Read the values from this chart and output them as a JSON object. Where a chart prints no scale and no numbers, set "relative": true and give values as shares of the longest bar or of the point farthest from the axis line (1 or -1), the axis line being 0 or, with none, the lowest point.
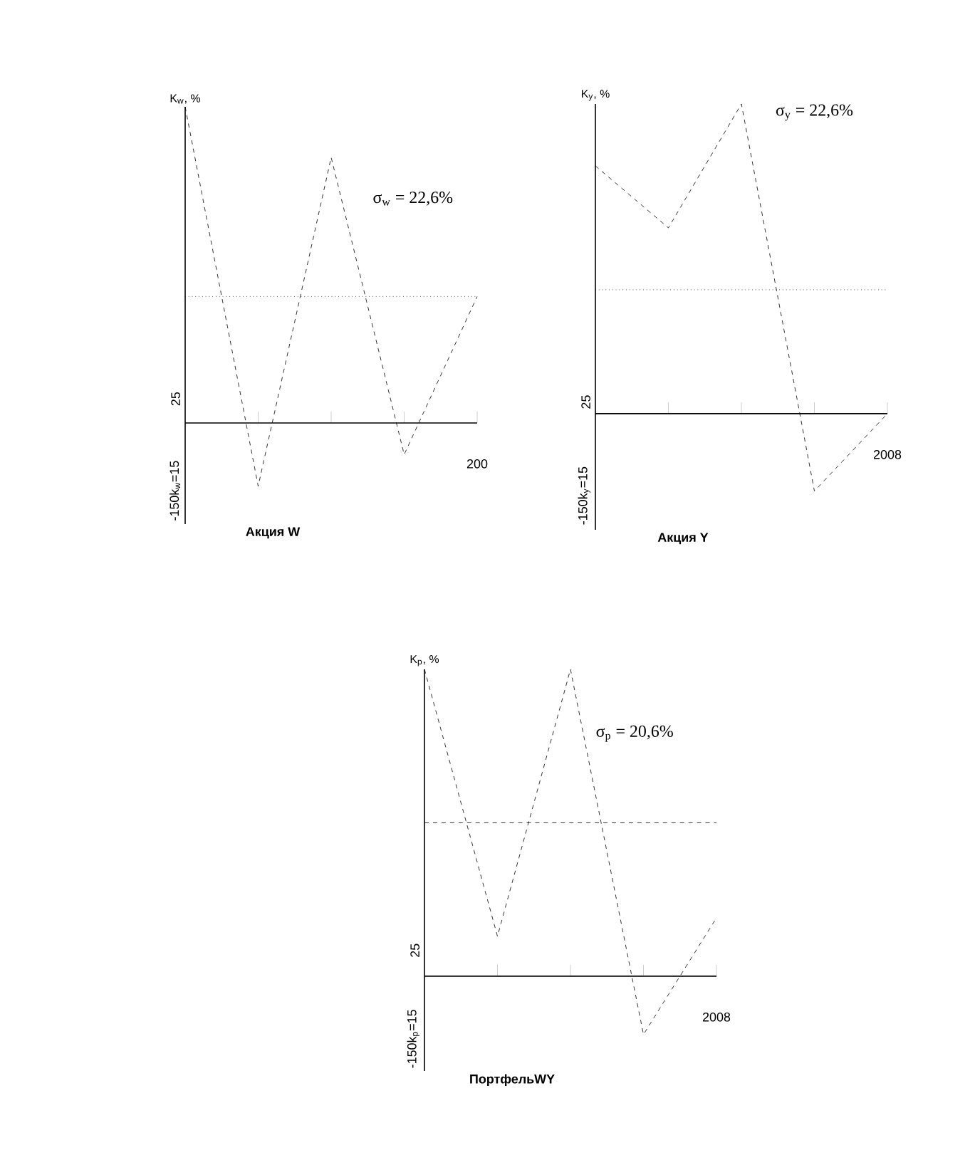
{
  "chart_data": [
    {
      "type": "line",
      "relative": true,
      "categories": [
        null,
        null,
        null,
        null,
        null
      ],
      "ylabel": "K$_{w}$, %",
      "xlabel": "Акция W",
      "line_style": "dashed",
      "marker": "none",
      "series": [
        {
          "color": "#000000",
          "values": [
            1,
            -0.2,
            0.84,
            -0.1,
            0.4
          ]
        }
      ],
      "ref_lines": [
        {
          "axis": "y",
          "value": 0.4,
          "line_style": "dotted"
        }
      ],
      "annotations": [
        "σ$_{w}$ = 22,6%",
        "-150k$_{w}$=15",
        "25",
        "200"
      ]
    },
    {
      "type": "line",
      "relative": true,
      "categories": [
        null,
        null,
        null,
        null,
        null
      ],
      "ylabel": "K$_{y}$, %",
      "xlabel": "Акция Y",
      "line_style": "dashed",
      "marker": "none",
      "series": [
        {
          "color": "#000000",
          "values": [
            0.8,
            0.6,
            1,
            -0.25,
            0
          ]
        }
      ],
      "ref_lines": [
        {
          "axis": "y",
          "value": 0.4,
          "line_style": "dotted"
        }
      ],
      "annotations": [
        "σ$_{y}$ = 22,6%",
        "-150k$_{y}$=15",
        "25",
        "2008"
      ]
    },
    {
      "type": "line",
      "relative": true,
      "categories": [
        null,
        null,
        null,
        null,
        null
      ],
      "ylabel": "K$_{p}$, %",
      "xlabel": "ПортфельWY",
      "line_style": "dashed",
      "marker": "none",
      "series": [
        {
          "color": "#000000",
          "values": [
            1,
            0.13,
            1,
            -0.19,
            0.19
          ]
        }
      ],
      "ref_lines": [
        {
          "axis": "y",
          "value": 0.5,
          "line_style": "dashed"
        }
      ],
      "annotations": [
        "σ$_{p}$ = 20,6%",
        "-150k$_{p}$=15",
        "25",
        "2008"
      ]
    }
  ]
}
